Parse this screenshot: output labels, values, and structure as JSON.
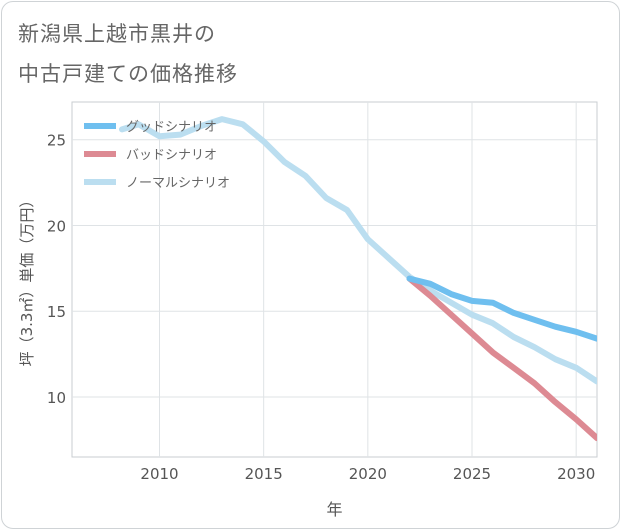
{
  "title_lines": [
    "新潟県上越市黒井の",
    "中古戸建ての価格推移"
  ],
  "chart_data": {
    "type": "line",
    "xlabel": "年",
    "ylabel": "坪（3.3㎡）単価（万円）",
    "xlim": [
      2005.8,
      2031
    ],
    "ylim": [
      6.5,
      27.2
    ],
    "xticks": [
      2010,
      2015,
      2020,
      2025,
      2030
    ],
    "yticks": [
      10,
      15,
      20,
      25
    ],
    "grid": true,
    "legend_position": "top-left",
    "series": [
      {
        "name": "グッドシナリオ",
        "color": "#6fbfef",
        "x": [
          2022,
          2023,
          2024,
          2025,
          2026,
          2027,
          2028,
          2029,
          2030,
          2031
        ],
        "y": [
          16.9,
          16.6,
          16.0,
          15.6,
          15.5,
          14.9,
          14.5,
          14.1,
          13.8,
          13.4
        ]
      },
      {
        "name": "バッドシナリオ",
        "color": "#dd8a93",
        "x": [
          2022,
          2023,
          2024,
          2025,
          2026,
          2027,
          2028,
          2029,
          2030,
          2031
        ],
        "y": [
          16.9,
          15.9,
          14.8,
          13.7,
          12.6,
          11.7,
          10.8,
          9.7,
          8.7,
          7.6
        ]
      },
      {
        "name": "ノーマルシナリオ",
        "color": "#bbdef0",
        "x": [
          2008.2,
          2009,
          2010,
          2011,
          2012,
          2013,
          2014,
          2015,
          2016,
          2017,
          2018,
          2019,
          2020,
          2021,
          2022,
          2023,
          2024,
          2025,
          2026,
          2027,
          2028,
          2029,
          2030,
          2031
        ],
        "y": [
          25.6,
          25.9,
          25.2,
          25.3,
          25.8,
          26.2,
          25.9,
          24.9,
          23.7,
          22.9,
          21.6,
          20.9,
          19.2,
          18.1,
          17.0,
          16.2,
          15.5,
          14.8,
          14.3,
          13.5,
          12.9,
          12.2,
          11.7,
          10.9
        ]
      }
    ]
  }
}
